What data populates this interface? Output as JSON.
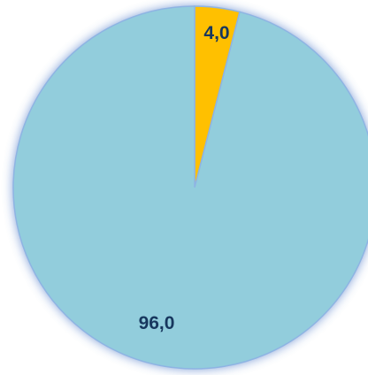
{
  "chart_data": {
    "type": "pie",
    "categories": [
      "",
      ""
    ],
    "values": [
      4.0,
      96.0
    ],
    "labels": [
      "4,0",
      "96,0"
    ],
    "colors": [
      "#FFC000",
      "#92CDDC"
    ],
    "label_color": "#17375E",
    "border_color": "#8EB4E3",
    "glow_color": "#4472C4",
    "start_angle_deg": 0,
    "direction": "clockwise",
    "legend": "none",
    "title": ""
  }
}
